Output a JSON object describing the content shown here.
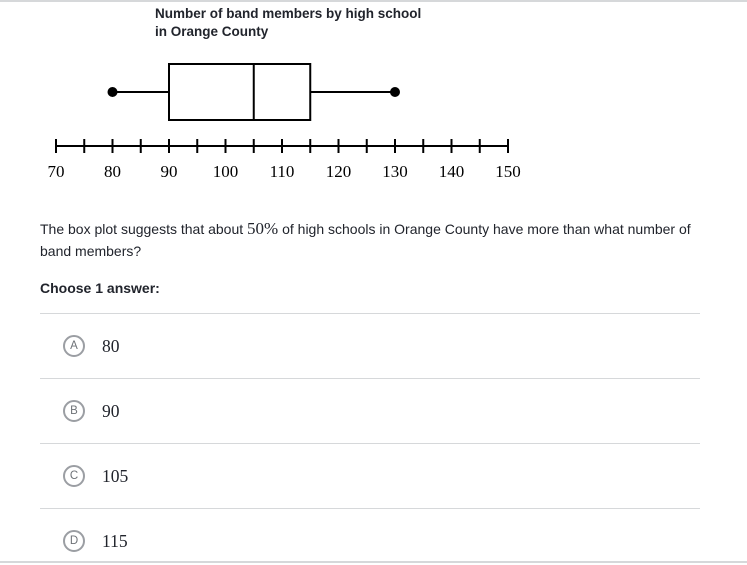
{
  "figure": {
    "title_lines": [
      "Number of band members by high school",
      "in Orange County"
    ]
  },
  "chart_data": {
    "type": "boxplot",
    "title": "Number of band members by high school in Orange County",
    "min": 80,
    "q1": 90,
    "median": 105,
    "q3": 115,
    "max": 130,
    "axis": {
      "start": 70,
      "end": 150,
      "major_step": 10,
      "minor_step": 5
    },
    "tick_labels": [
      "70",
      "80",
      "90",
      "100",
      "110",
      "120",
      "130",
      "140",
      "150"
    ],
    "grid": false,
    "orientation": "horizontal"
  },
  "question": {
    "text_before_math": "The box plot suggests that about ",
    "math": "50%",
    "text_after_math": " of high schools in Orange County have more than what number of band members?",
    "prompt": "Choose 1 answer:"
  },
  "answers": [
    {
      "letter": "A",
      "label": "80"
    },
    {
      "letter": "B",
      "label": "90"
    },
    {
      "letter": "C",
      "label": "105"
    },
    {
      "letter": "D",
      "label": "115"
    }
  ],
  "colors": {
    "text": "#21242c",
    "divider": "#d6d8da",
    "plot_stroke": "#000000",
    "circle_border": "#9b9ea3",
    "circle_letter": "#6e7277"
  }
}
